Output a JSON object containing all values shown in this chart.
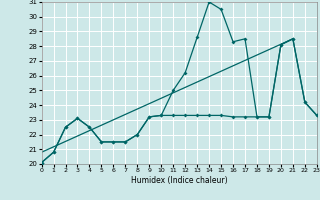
{
  "xlabel": "Humidex (Indice chaleur)",
  "xlim": [
    0,
    23
  ],
  "ylim": [
    20,
    31
  ],
  "xticks": [
    0,
    1,
    2,
    3,
    4,
    5,
    6,
    7,
    8,
    9,
    10,
    11,
    12,
    13,
    14,
    15,
    16,
    17,
    18,
    19,
    20,
    21,
    22,
    23
  ],
  "yticks": [
    20,
    21,
    22,
    23,
    24,
    25,
    26,
    27,
    28,
    29,
    30,
    31
  ],
  "bg_color": "#cde8e8",
  "line_color": "#006666",
  "grid_color": "#b8d8d8",
  "line1_x": [
    0,
    1,
    2,
    3,
    4,
    5,
    6,
    7,
    8,
    9,
    10,
    11,
    12,
    13,
    14,
    15,
    16,
    17,
    18,
    19,
    20,
    21,
    22,
    23
  ],
  "line1_y": [
    20.1,
    20.8,
    22.5,
    23.1,
    22.5,
    21.5,
    21.5,
    21.5,
    22.0,
    23.2,
    23.3,
    25.0,
    26.2,
    28.6,
    31.0,
    30.5,
    28.3,
    28.5,
    23.2,
    23.2,
    28.1,
    28.5,
    24.2,
    23.3
  ],
  "line2_x": [
    0,
    1,
    2,
    3,
    4,
    5,
    6,
    7,
    8,
    9,
    10,
    11,
    12,
    13,
    14,
    15,
    16,
    17,
    18,
    19,
    20,
    21,
    22,
    23
  ],
  "line2_y": [
    20.1,
    20.8,
    22.5,
    23.1,
    22.5,
    21.5,
    21.5,
    21.5,
    22.0,
    23.2,
    23.3,
    23.3,
    23.3,
    23.3,
    23.3,
    23.3,
    23.2,
    23.2,
    23.2,
    23.2,
    28.1,
    28.5,
    24.2,
    23.3
  ],
  "line3_x": [
    0,
    21
  ],
  "line3_y": [
    20.8,
    28.5
  ]
}
